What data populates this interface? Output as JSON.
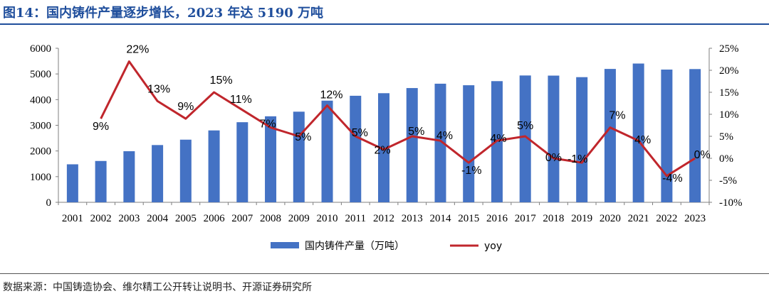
{
  "header": {
    "title": "图14：国内铸件产量逐步增长，2023 年达 5190 万吨"
  },
  "footer": {
    "source": "数据来源：中国铸造协会、维尔精工公开转让说明书、开源证券研究所"
  },
  "colors": {
    "bar": "#4472c4",
    "line": "#c0262c",
    "title": "#1f4e9c"
  },
  "chart_data": {
    "type": "bar+line",
    "title": "图14：国内铸件产量逐步增长，2023 年达 5190 万吨",
    "categories": [
      "2001",
      "2002",
      "2003",
      "2004",
      "2005",
      "2006",
      "2007",
      "2008",
      "2009",
      "2010",
      "2011",
      "2012",
      "2013",
      "2014",
      "2015",
      "2016",
      "2017",
      "2018",
      "2019",
      "2020",
      "2021",
      "2022",
      "2023"
    ],
    "series": [
      {
        "name": "国内铸件产量（万吨）",
        "type": "bar",
        "axis": "left",
        "values": [
          1480,
          1610,
          1990,
          2230,
          2440,
          2800,
          3120,
          3350,
          3530,
          3960,
          4150,
          4250,
          4450,
          4620,
          4560,
          4720,
          4940,
          4935,
          4875,
          5195,
          5405,
          5170,
          5190
        ]
      },
      {
        "name": "yoy",
        "type": "line",
        "axis": "right",
        "values": [
          null,
          9,
          22,
          13,
          9,
          15,
          11,
          7,
          5,
          12,
          5,
          2,
          5,
          4,
          -1,
          4,
          5,
          0,
          -1,
          7,
          4,
          -4,
          0
        ],
        "labels": [
          "",
          "9%",
          "22%",
          "13%",
          "9%",
          "15%",
          "11%",
          "7%",
          "5%",
          "12%",
          "5%",
          "2%",
          "5%",
          "4%",
          "-1%",
          "4%",
          "5%",
          "0%",
          "-1%",
          "7%",
          "4%",
          "-4%",
          "0%"
        ]
      }
    ],
    "y_left": {
      "min": 0,
      "max": 6000,
      "ticks": [
        "0",
        "1000",
        "2000",
        "3000",
        "4000",
        "5000",
        "6000"
      ]
    },
    "y_right": {
      "min": -10,
      "max": 25,
      "ticks": [
        "-10%",
        "-5%",
        "0%",
        "5%",
        "10%",
        "15%",
        "20%",
        "25%"
      ]
    },
    "legend": {
      "position": "bottom-center",
      "items": [
        {
          "label": "国内铸件产量（万吨）",
          "kind": "bar"
        },
        {
          "label": "yoy",
          "kind": "line"
        }
      ]
    }
  }
}
